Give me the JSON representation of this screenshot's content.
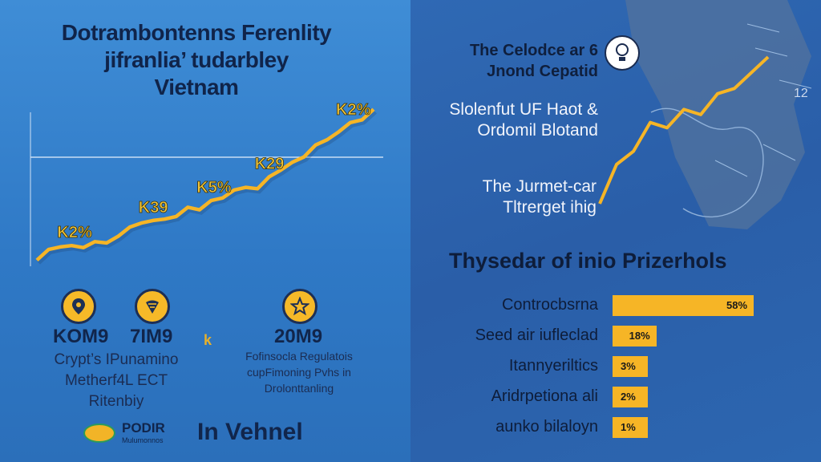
{
  "left": {
    "title_lines": [
      "Dotrambontenns Ferenlity",
      "jifranlia’ tudarbley",
      "Vietnam"
    ],
    "icons": [
      "pin-icon",
      "tag-icon",
      "star-icon"
    ],
    "stat_years": [
      "KOM9",
      "7IM9",
      "20M9"
    ],
    "stat_mark": "k",
    "stat_desc_1": [
      "Crypt’s IPunamino",
      "Metherf4L ECT",
      "Ritenbiy"
    ],
    "stat_desc_3": [
      "Fofinsocla Regulatois",
      "cupFimoning Pvhs in",
      "Drolonttanling"
    ],
    "logo_text": [
      "PODIR",
      "Mulumonnos"
    ],
    "footer": "In Vehnel"
  },
  "right": {
    "heading": [
      "The Celodce ar 6",
      "Jnond Cepatid"
    ],
    "sub1": [
      "Slolenfut UF Haot &",
      "Ordomil Blotand"
    ],
    "sub2": [
      "The Jurmet-car",
      "Tltrerget ihig"
    ],
    "map_label": "12"
  },
  "chart_data": [
    {
      "type": "line",
      "title": "",
      "line_color": "#f6b526",
      "x": [
        0,
        1,
        2,
        3,
        4,
        5,
        6,
        7,
        8,
        9,
        10,
        11,
        12,
        13,
        14,
        15,
        16,
        17,
        18,
        19,
        20,
        21,
        22,
        23,
        24,
        25,
        26,
        27,
        28,
        29
      ],
      "values": [
        2,
        18,
        22,
        24,
        21,
        30,
        28,
        38,
        52,
        58,
        62,
        64,
        68,
        82,
        78,
        92,
        96,
        108,
        112,
        110,
        128,
        138,
        150,
        158,
        176,
        184,
        196,
        210,
        214,
        230
      ],
      "ylim": [
        0,
        240
      ],
      "annotations": [
        "K2%",
        "K39",
        "K5%",
        "K29",
        "K2%"
      ],
      "annotation_at": [
        3,
        10,
        15,
        20,
        27
      ],
      "grid": false
    },
    {
      "type": "line",
      "title": "",
      "line_color": "#f6b526",
      "x": [
        0,
        1,
        2,
        3,
        4,
        5,
        6,
        7,
        8,
        9,
        10
      ],
      "values": [
        0,
        30,
        40,
        62,
        58,
        72,
        68,
        84,
        88,
        100,
        112
      ],
      "ylim": [
        0,
        120
      ]
    },
    {
      "type": "bar",
      "orientation": "horizontal",
      "title": "Thysedar of inio Prizerhols",
      "categories": [
        "Controcbsrna",
        "Seed air iufleclad",
        "Itannyeriltics",
        "Aridrpetiona ali",
        "aunko bilaloyn"
      ],
      "values": [
        58,
        18,
        3,
        2,
        1
      ],
      "value_labels": [
        "58%",
        "18%",
        "3%",
        "2%",
        "1%"
      ],
      "bar_color": "#f6b526"
    }
  ]
}
